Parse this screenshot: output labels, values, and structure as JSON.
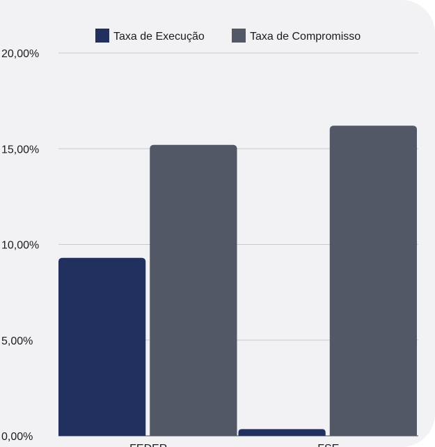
{
  "chart_data": {
    "type": "bar",
    "categories": [
      "FEDER",
      "FSE"
    ],
    "series": [
      {
        "name": "Taxa de Execução",
        "values": [
          9.3,
          0.35
        ],
        "color": "#22305f"
      },
      {
        "name": "Taxa de Compromisso",
        "values": [
          15.2,
          16.2
        ],
        "color": "#535867"
      }
    ],
    "ylim": [
      0,
      20
    ],
    "yticks": [
      {
        "value": 0,
        "label": "0,00%"
      },
      {
        "value": 5,
        "label": "5,00%"
      },
      {
        "value": 10,
        "label": "10,00%"
      },
      {
        "value": 15,
        "label": "15,00%"
      },
      {
        "value": 20,
        "label": "20,00%"
      }
    ],
    "grid": true,
    "legend_position": "top"
  }
}
